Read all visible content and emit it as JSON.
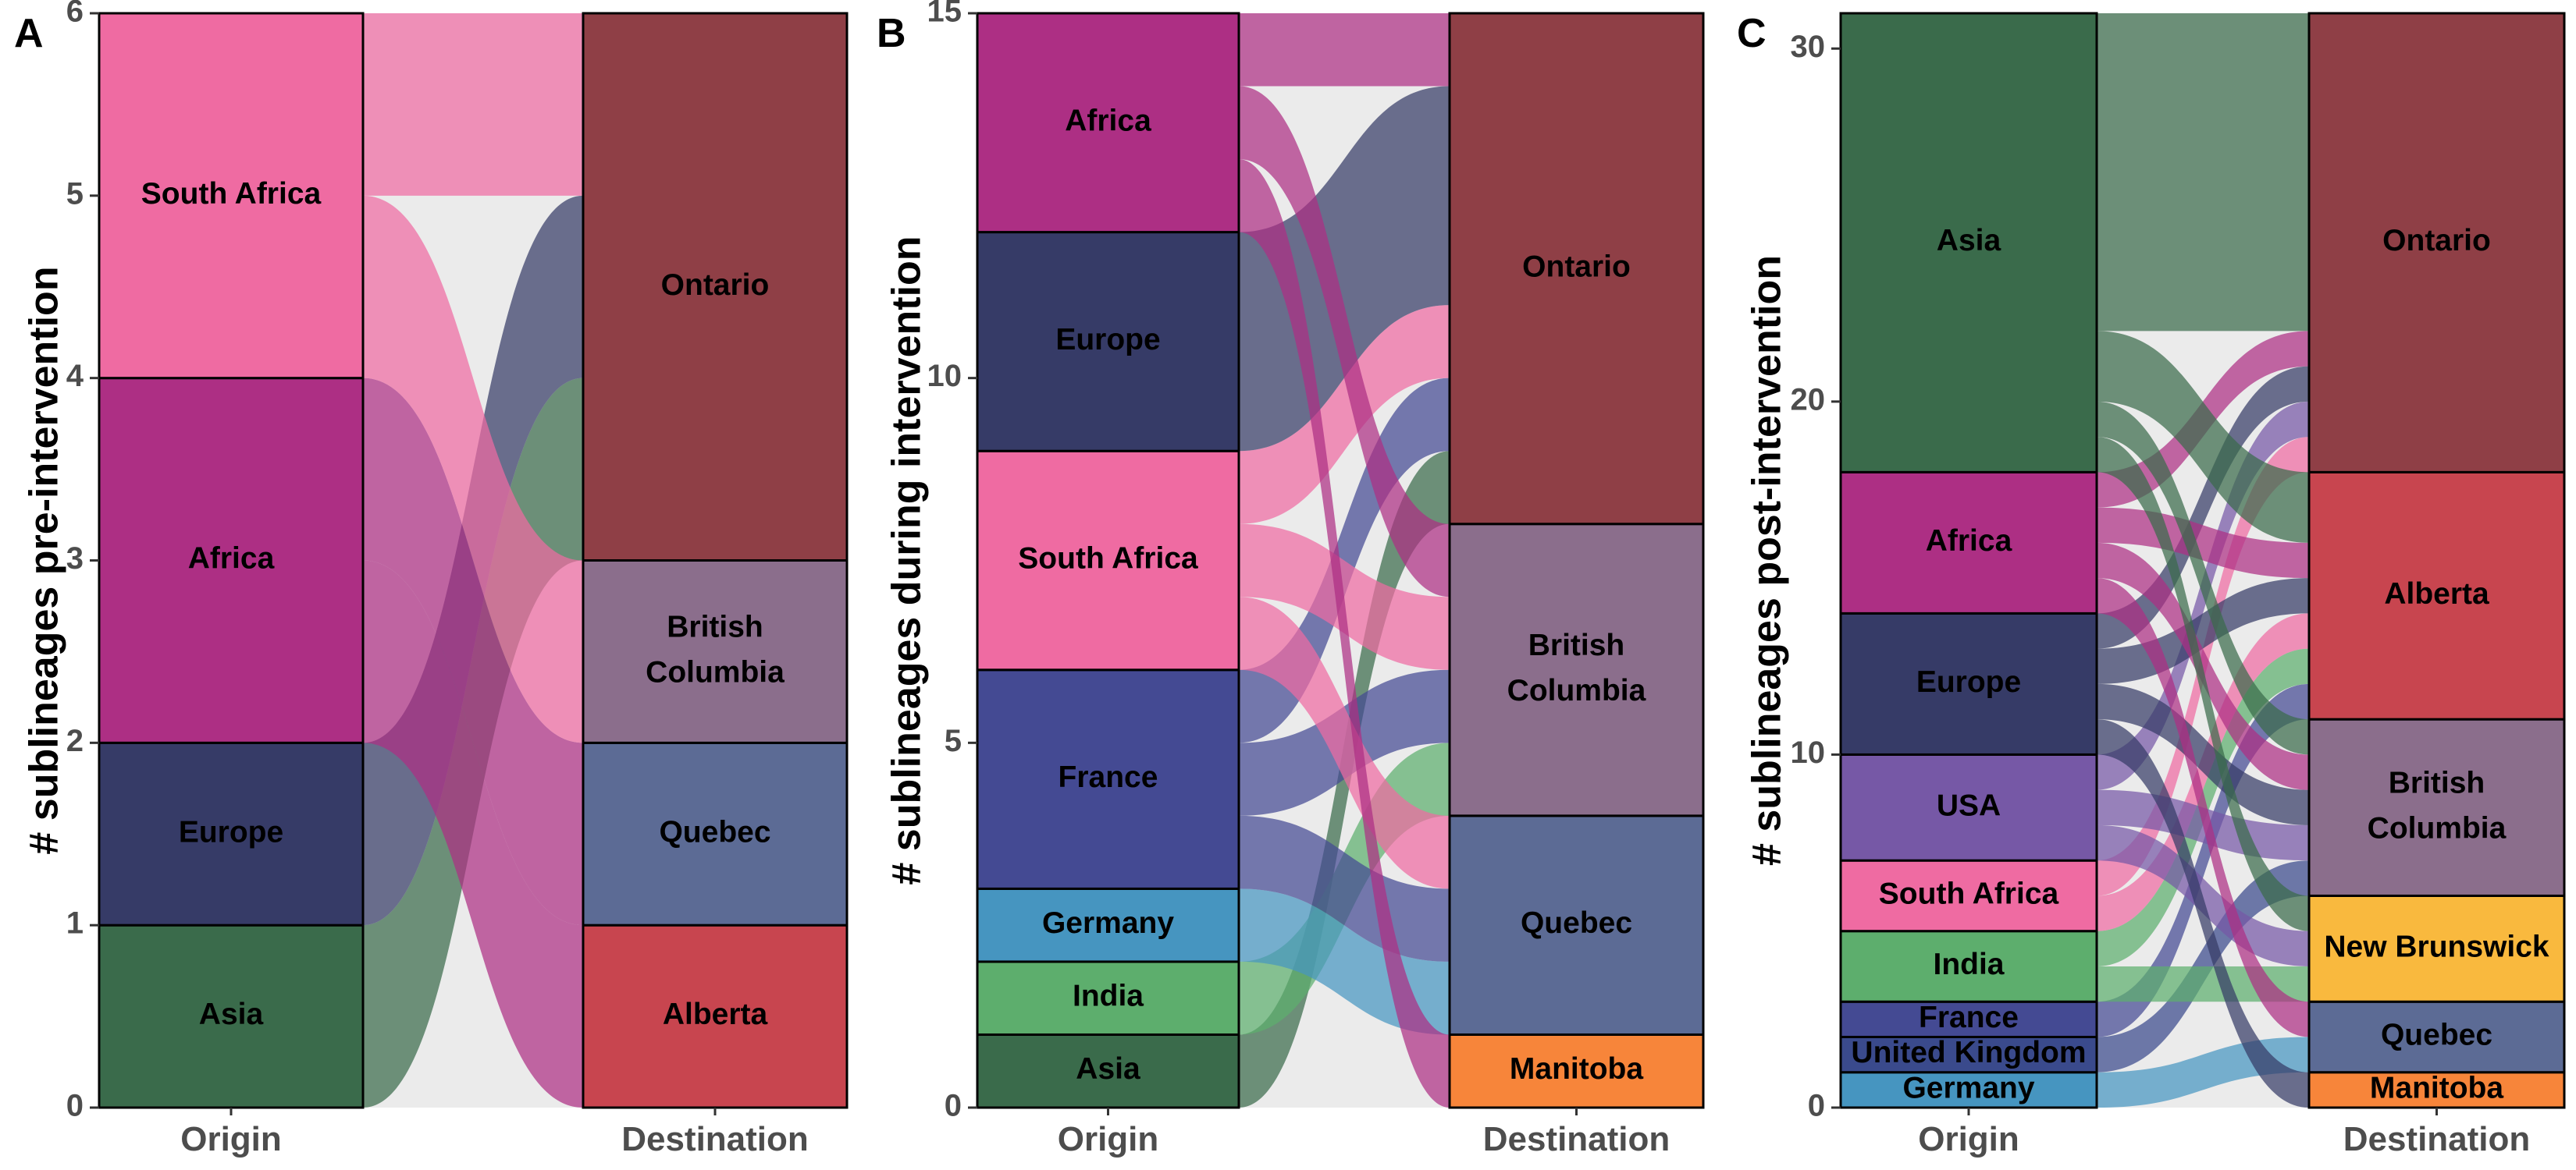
{
  "chart_data": [
    {
      "type": "alluvial",
      "panel_label": "A",
      "ylabel": "# sublineages pre-intervention",
      "xlabel": "",
      "axes": [
        "Origin",
        "Destination"
      ],
      "ylim": [
        0,
        6
      ],
      "yticks": [
        "0",
        "1",
        "2",
        "3",
        "4",
        "5",
        "6"
      ],
      "origin_strata": [
        {
          "name": "Asia",
          "label": "Asia",
          "value": 1,
          "color": "#3A6B4B"
        },
        {
          "name": "Europe",
          "label": "Europe",
          "value": 1,
          "color": "#363B67"
        },
        {
          "name": "Africa",
          "label": "Africa",
          "value": 2,
          "color": "#AD2F84"
        },
        {
          "name": "South Africa",
          "label": "South Africa",
          "value": 2,
          "color": "#EF6BA2"
        }
      ],
      "destination_strata": [
        {
          "name": "Alberta",
          "label": "Alberta",
          "value": 1,
          "color": "#C8454F"
        },
        {
          "name": "Quebec",
          "label": "Quebec",
          "value": 1,
          "color": "#5C6B95"
        },
        {
          "name": "British Columbia",
          "label": "British\nColumbia",
          "value": 1,
          "color": "#8B6E8C"
        },
        {
          "name": "Ontario",
          "label": "Ontario",
          "value": 3,
          "color": "#8F3F46"
        }
      ],
      "flows": [
        {
          "from": "Asia",
          "to": "Ontario",
          "value": 1
        },
        {
          "from": "Europe",
          "to": "Ontario",
          "value": 1
        },
        {
          "from": "Africa",
          "to": "Alberta",
          "value": 1
        },
        {
          "from": "Africa",
          "to": "Quebec",
          "value": 1
        },
        {
          "from": "South Africa",
          "to": "British Columbia",
          "value": 1
        },
        {
          "from": "South Africa",
          "to": "Ontario",
          "value": 1
        }
      ]
    },
    {
      "type": "alluvial",
      "panel_label": "B",
      "ylabel": "# sublineages during intervention",
      "xlabel": "",
      "axes": [
        "Origin",
        "Destination"
      ],
      "ylim": [
        0,
        15
      ],
      "yticks": [
        "0",
        "5",
        "10",
        "15"
      ],
      "origin_strata": [
        {
          "name": "Asia",
          "label": "Asia",
          "value": 1,
          "color": "#3A6B4B"
        },
        {
          "name": "India",
          "label": "India",
          "value": 1,
          "color": "#5DAE6D"
        },
        {
          "name": "Germany",
          "label": "Germany",
          "value": 1,
          "color": "#4695C0"
        },
        {
          "name": "France",
          "label": "France",
          "value": 3,
          "color": "#444A93"
        },
        {
          "name": "South Africa",
          "label": "South Africa",
          "value": 3,
          "color": "#EF6BA2"
        },
        {
          "name": "Europe",
          "label": "Europe",
          "value": 3,
          "color": "#363B67"
        },
        {
          "name": "Africa",
          "label": "Africa",
          "value": 3,
          "color": "#AD2F84"
        }
      ],
      "destination_strata": [
        {
          "name": "Manitoba",
          "label": "Manitoba",
          "value": 1,
          "color": "#F7853A"
        },
        {
          "name": "Quebec",
          "label": "Quebec",
          "value": 3,
          "color": "#5C6B95"
        },
        {
          "name": "British Columbia",
          "label": "British\nColumbia",
          "value": 4,
          "color": "#8B6E8C"
        },
        {
          "name": "Ontario",
          "label": "Ontario",
          "value": 7,
          "color": "#8F3F46"
        }
      ],
      "flows": [
        {
          "from": "Asia",
          "to": "Ontario",
          "value": 1
        },
        {
          "from": "India",
          "to": "British Columbia",
          "value": 1
        },
        {
          "from": "Germany",
          "to": "Quebec",
          "value": 1
        },
        {
          "from": "France",
          "to": "Quebec",
          "value": 1
        },
        {
          "from": "France",
          "to": "British Columbia",
          "value": 1
        },
        {
          "from": "France",
          "to": "Ontario",
          "value": 1
        },
        {
          "from": "South Africa",
          "to": "Quebec",
          "value": 1
        },
        {
          "from": "South Africa",
          "to": "British Columbia",
          "value": 1
        },
        {
          "from": "South Africa",
          "to": "Ontario",
          "value": 1
        },
        {
          "from": "Europe",
          "to": "Ontario",
          "value": 3
        },
        {
          "from": "Africa",
          "to": "Manitoba",
          "value": 1
        },
        {
          "from": "Africa",
          "to": "British Columbia",
          "value": 1
        },
        {
          "from": "Africa",
          "to": "Ontario",
          "value": 1
        }
      ]
    },
    {
      "type": "alluvial",
      "panel_label": "C",
      "ylabel": "# sublineages post-intervention",
      "xlabel": "",
      "axes": [
        "Origin",
        "Destination"
      ],
      "ylim": [
        0,
        31
      ],
      "yticks": [
        "0",
        "10",
        "20",
        "30"
      ],
      "origin_strata": [
        {
          "name": "Germany",
          "label": "Germany",
          "value": 1,
          "color": "#4695C0"
        },
        {
          "name": "United Kingdom",
          "label": "United Kingdom",
          "value": 1,
          "color": "#3A4A8C"
        },
        {
          "name": "France",
          "label": "France",
          "value": 1,
          "color": "#444A93"
        },
        {
          "name": "India",
          "label": "India",
          "value": 2,
          "color": "#5DAE6D"
        },
        {
          "name": "South Africa",
          "label": "South Africa",
          "value": 2,
          "color": "#EF6BA2"
        },
        {
          "name": "USA",
          "label": "USA",
          "value": 3,
          "color": "#7658A6"
        },
        {
          "name": "Europe",
          "label": "Europe",
          "value": 4,
          "color": "#363B67"
        },
        {
          "name": "Africa",
          "label": "Africa",
          "value": 4,
          "color": "#AD2F84"
        },
        {
          "name": "Asia",
          "label": "Asia",
          "value": 13,
          "color": "#3A6B4B"
        }
      ],
      "destination_strata": [
        {
          "name": "Manitoba",
          "label": "Manitoba",
          "value": 1,
          "color": "#F7853A"
        },
        {
          "name": "Quebec",
          "label": "Quebec",
          "value": 2,
          "color": "#5C6B95"
        },
        {
          "name": "New Brunswick",
          "label": "New Brunswick",
          "value": 3,
          "color": "#F9B93E"
        },
        {
          "name": "British Columbia",
          "label": "British\nColumbia",
          "value": 5,
          "color": "#8B6E8C"
        },
        {
          "name": "Alberta",
          "label": "Alberta",
          "value": 7,
          "color": "#C8454F"
        },
        {
          "name": "Ontario",
          "label": "Ontario",
          "value": 13,
          "color": "#8F3F46"
        }
      ],
      "flows": [
        {
          "from": "Germany",
          "to": "Quebec",
          "value": 1
        },
        {
          "from": "United Kingdom",
          "to": "British Columbia",
          "value": 1
        },
        {
          "from": "France",
          "to": "Alberta",
          "value": 1
        },
        {
          "from": "India",
          "to": "New Brunswick",
          "value": 1
        },
        {
          "from": "India",
          "to": "Alberta",
          "value": 1
        },
        {
          "from": "South Africa",
          "to": "Alberta",
          "value": 1
        },
        {
          "from": "South Africa",
          "to": "Ontario",
          "value": 1
        },
        {
          "from": "USA",
          "to": "New Brunswick",
          "value": 1
        },
        {
          "from": "USA",
          "to": "British Columbia",
          "value": 1
        },
        {
          "from": "USA",
          "to": "Ontario",
          "value": 1
        },
        {
          "from": "Europe",
          "to": "Manitoba",
          "value": 1
        },
        {
          "from": "Europe",
          "to": "British Columbia",
          "value": 1
        },
        {
          "from": "Europe",
          "to": "Alberta",
          "value": 1
        },
        {
          "from": "Europe",
          "to": "Ontario",
          "value": 1
        },
        {
          "from": "Africa",
          "to": "Quebec",
          "value": 1
        },
        {
          "from": "Africa",
          "to": "British Columbia",
          "value": 1
        },
        {
          "from": "Africa",
          "to": "Alberta",
          "value": 1
        },
        {
          "from": "Africa",
          "to": "Ontario",
          "value": 1
        },
        {
          "from": "Asia",
          "to": "New Brunswick",
          "value": 1
        },
        {
          "from": "Asia",
          "to": "British Columbia",
          "value": 1
        },
        {
          "from": "Asia",
          "to": "Alberta",
          "value": 2
        },
        {
          "from": "Asia",
          "to": "Ontario",
          "value": 9
        }
      ]
    }
  ]
}
